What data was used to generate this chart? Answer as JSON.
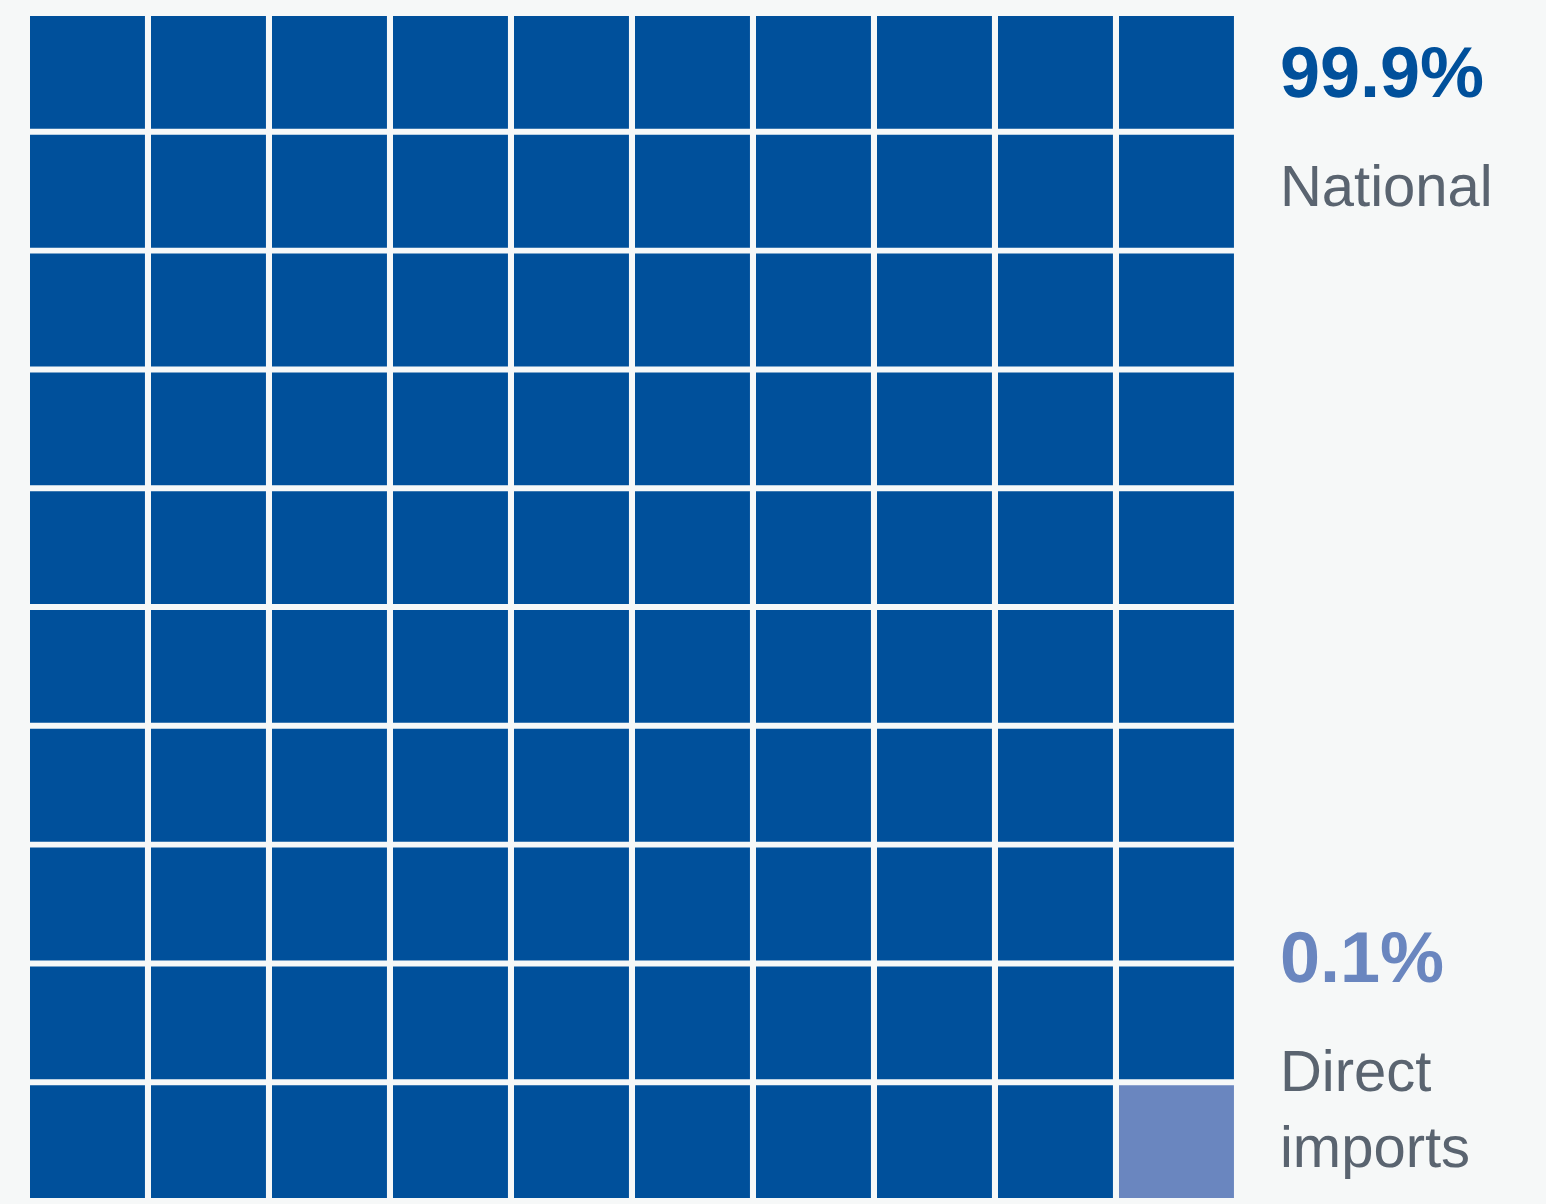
{
  "chart_data": {
    "type": "other",
    "categories": [
      "National",
      "Direct imports"
    ],
    "values": [
      99.9,
      0.1
    ],
    "colors": [
      "#00509b",
      "#6a86bf"
    ],
    "value_labels": [
      "99.9%",
      "0.1%"
    ]
  }
}
